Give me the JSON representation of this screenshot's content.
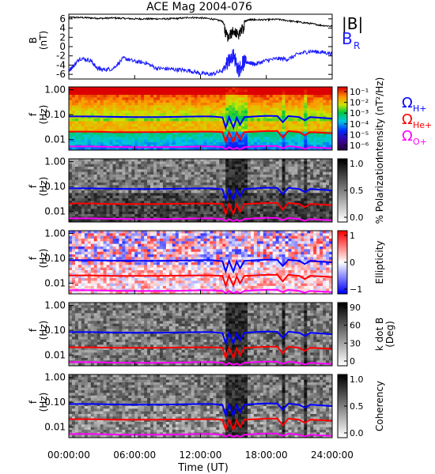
{
  "title": "ACE Mag 2004-076",
  "xlabel": "Time (UT)",
  "colors": {
    "B_total": "#000000",
    "B_R": "#1a1aff",
    "omega_H": "#0000ff",
    "omega_He": "#ff0000",
    "omega_O": "#ff00ff"
  },
  "chart_data": [
    {
      "type": "line",
      "panel": "B",
      "ylabel": [
        "B",
        "(nT)"
      ],
      "ylim": [
        -7,
        7
      ],
      "yticks": [
        "6",
        "4",
        "2",
        "0",
        "-2",
        "-4",
        "-6"
      ],
      "xlim": [
        0,
        24
      ],
      "legend": [
        "|B|",
        "B"
      ],
      "legend_sub": [
        "",
        "R"
      ],
      "series": [
        {
          "name": "|B|",
          "x": [
            0,
            1,
            2,
            3,
            4,
            5,
            6,
            7,
            8,
            9,
            10,
            11,
            12,
            13,
            14,
            14.5,
            15,
            15.5,
            16,
            16.5,
            17,
            18,
            19,
            20,
            21,
            22,
            23,
            24
          ],
          "values": [
            6.3,
            6.3,
            6.2,
            6.1,
            6.2,
            6.1,
            6.0,
            6.0,
            6.0,
            6.0,
            6.1,
            6.3,
            6.2,
            6.0,
            5.5,
            3.0,
            4.5,
            3.5,
            5.5,
            5.8,
            5.8,
            5.8,
            5.9,
            5.6,
            5.3,
            5.0,
            4.6,
            4.4
          ]
        },
        {
          "name": "B R",
          "x": [
            0,
            0.5,
            1,
            2,
            2.5,
            3,
            4,
            5,
            6,
            7,
            8,
            9,
            10,
            11,
            12,
            13,
            14,
            14.5,
            15,
            15.5,
            16,
            16.5,
            17,
            18,
            19,
            20,
            21,
            22,
            23,
            24
          ],
          "values": [
            -5.2,
            -4.0,
            -2.5,
            -3.0,
            -4.5,
            -5.0,
            -4.8,
            -2.5,
            -3.2,
            -3.5,
            -4.7,
            -4.8,
            -5.0,
            -5.2,
            -5.8,
            -6.0,
            -5.2,
            -3.0,
            -2.0,
            -5.0,
            -3.2,
            -3.5,
            -3.8,
            -3.0,
            -2.6,
            -2.7,
            -1.5,
            -1.0,
            -1.2,
            -1.5
          ]
        }
      ]
    },
    {
      "type": "heatmap",
      "panel": "intensity",
      "ylabel": [
        "f",
        "(Hz)"
      ],
      "yticks": [
        "1.00",
        "0.10",
        "0.01"
      ],
      "ylim": [
        0.004,
        1.3
      ],
      "colorbar_label": "Intensity (nT²/Hz)",
      "colorbar_ticks": [
        "10⁻¹",
        "10⁻²",
        "10⁻³",
        "10⁻⁴",
        "10⁻⁵",
        "10⁻⁶"
      ],
      "colorscale": "rainbow",
      "legend": [
        "Ω",
        "Ω",
        "Ω"
      ],
      "legend_sub": [
        "H+",
        "He+",
        "O+"
      ]
    },
    {
      "type": "heatmap",
      "panel": "polarization",
      "ylabel": [
        "f",
        "(Hz)"
      ],
      "yticks": [
        "1.00",
        "0.10",
        "0.01"
      ],
      "colorbar_label": "% Polarization",
      "colorbar_ticks": [
        "1.0",
        "0.5",
        "0.0"
      ],
      "colorscale": "gray"
    },
    {
      "type": "heatmap",
      "panel": "ellipticity",
      "ylabel": [
        "f",
        "(Hz)"
      ],
      "yticks": [
        "1.00",
        "0.10",
        "0.01"
      ],
      "colorbar_label": "Ellipticity",
      "colorbar_ticks": [
        "1",
        "0",
        "−1"
      ],
      "colorscale": "blue-white-red"
    },
    {
      "type": "heatmap",
      "panel": "kdotB",
      "ylabel": [
        "f",
        "(Hz)"
      ],
      "yticks": [
        "1.00",
        "0.10",
        "0.01"
      ],
      "colorbar_label": [
        "k dot B",
        "(Deg)"
      ],
      "colorbar_ticks": [
        "90",
        "60",
        "30",
        "0"
      ],
      "colorscale": "gray"
    },
    {
      "type": "heatmap",
      "panel": "coherency",
      "ylabel": [
        "f",
        "(Hz)"
      ],
      "yticks": [
        "1.00",
        "0.10",
        "0.01"
      ],
      "colorbar_label": "Coherency",
      "colorbar_ticks": [
        "1.0",
        "0.5",
        "0.0"
      ],
      "colorscale": "gray"
    }
  ],
  "overlay_lines": {
    "x": [
      0,
      2,
      4,
      6,
      8,
      10,
      12,
      13,
      14,
      14.3,
      14.6,
      15,
      15.3,
      15.6,
      16,
      17,
      18,
      19,
      19.5,
      20,
      21,
      21.5,
      22,
      23,
      24
    ],
    "omega_H": [
      0.085,
      0.085,
      0.082,
      0.08,
      0.08,
      0.082,
      0.085,
      0.085,
      0.078,
      0.03,
      0.08,
      0.03,
      0.075,
      0.04,
      0.08,
      0.085,
      0.09,
      0.088,
      0.05,
      0.088,
      0.08,
      0.06,
      0.08,
      0.075,
      0.07
    ],
    "omega_He": [
      0.021,
      0.021,
      0.02,
      0.02,
      0.02,
      0.0205,
      0.021,
      0.021,
      0.02,
      0.008,
      0.02,
      0.008,
      0.019,
      0.01,
      0.02,
      0.021,
      0.022,
      0.022,
      0.012,
      0.022,
      0.02,
      0.015,
      0.02,
      0.019,
      0.018
    ],
    "omega_O": [
      0.0053,
      0.0053,
      0.0051,
      0.005,
      0.005,
      0.0051,
      0.0053,
      0.0053,
      0.005,
      0.004,
      0.005,
      0.004,
      0.0047,
      0.004,
      0.005,
      0.0053,
      0.0055,
      0.0055,
      0.0045,
      0.0055,
      0.005,
      0.0042,
      0.005,
      0.0047,
      0.0045
    ]
  },
  "xticks": {
    "values": [
      0,
      6,
      12,
      18,
      24
    ],
    "labels": [
      "00:00:00",
      "06:00:00",
      "12:00:00",
      "18:00:00",
      "24:00:00"
    ]
  }
}
